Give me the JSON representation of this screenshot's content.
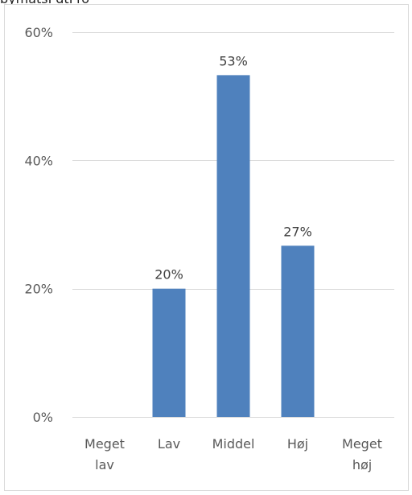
{
  "header": {
    "clipped_title": "bymatsPdtPro"
  },
  "chart_data": {
    "type": "bar",
    "categories": [
      [
        "Meget",
        "lav"
      ],
      [
        "Lav"
      ],
      [
        "Middel"
      ],
      [
        "Høj"
      ],
      [
        "Meget",
        "høj"
      ]
    ],
    "values": [
      null,
      0.2,
      0.533,
      0.267,
      null
    ],
    "data_labels": [
      "",
      "20%",
      "53%",
      "27%",
      ""
    ],
    "ylim": [
      0,
      0.6
    ],
    "yticks": [
      0,
      0.2,
      0.4,
      0.6
    ],
    "ytick_labels": [
      "0%",
      "20%",
      "40%",
      "60%"
    ],
    "grid": true,
    "legend": "none",
    "title": "",
    "xlabel": "",
    "ylabel": "",
    "colors": {
      "bar": "#4f81bd",
      "grid": "#d9d9d9",
      "axis_text": "#595959",
      "label_text": "#404040"
    }
  }
}
